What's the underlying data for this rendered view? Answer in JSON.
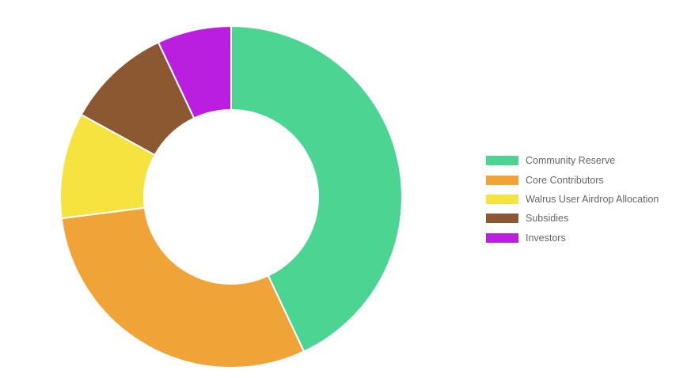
{
  "chart_data": {
    "type": "pie",
    "variant": "doughnut",
    "legend_position": "right",
    "categories": [
      "Community Reserve",
      "Core Contributors",
      "Walrus User Airdrop Allocation",
      "Subsidies",
      "Investors"
    ],
    "values": [
      43,
      30,
      10,
      10,
      7
    ],
    "colors": [
      "#4cd493",
      "#f0a336",
      "#f5e33f",
      "#8b5831",
      "#ba1fdf"
    ]
  }
}
